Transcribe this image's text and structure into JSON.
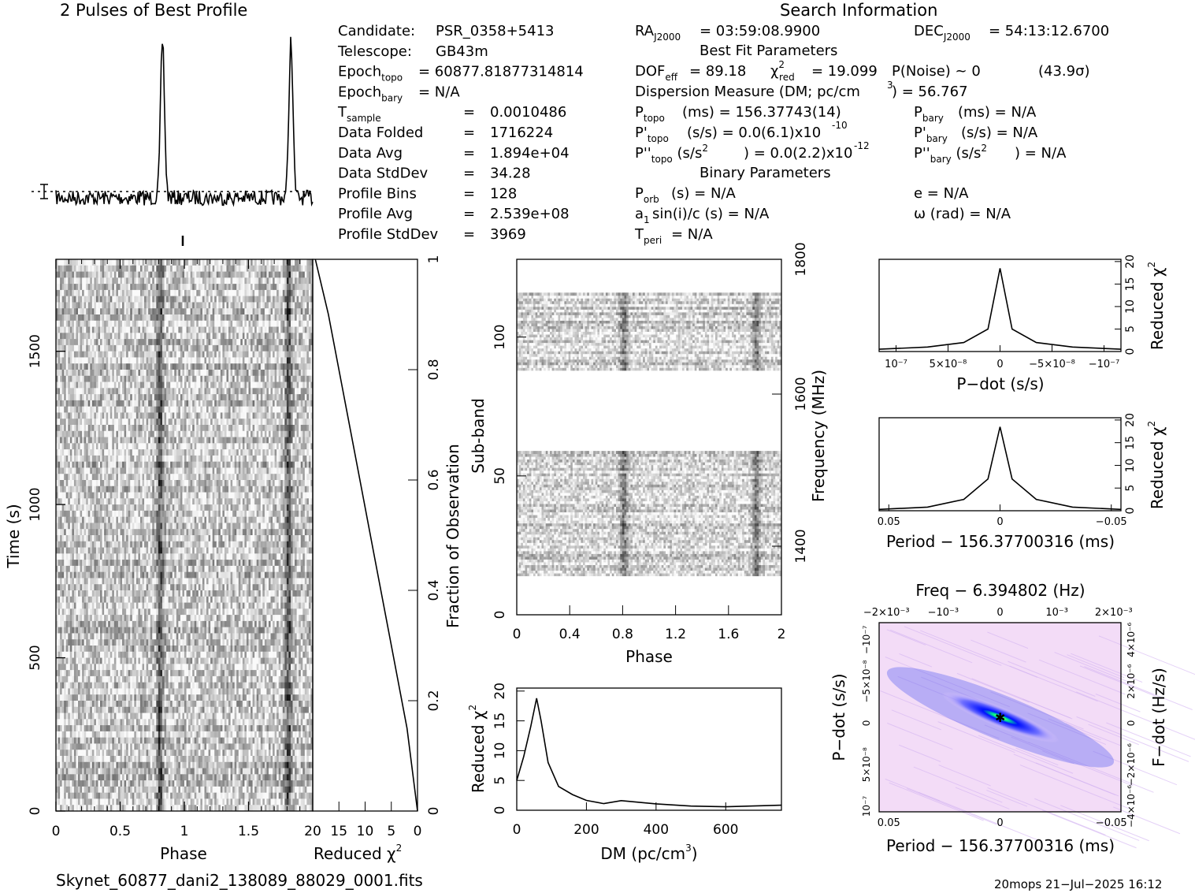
{
  "profile": {
    "title": "2 Pulses of Best Profile"
  },
  "search_info": {
    "title": "Search Information",
    "col1": [
      {
        "label": "Candidate:",
        "value": "PSR_0358+5413"
      },
      {
        "label": "Telescope:",
        "value": "GB43m"
      },
      {
        "label": "Epoch",
        "sub": "topo",
        "value": "= 60877.81877314814"
      },
      {
        "label": "Epoch",
        "sub": "bary",
        "value": "= N/A"
      },
      {
        "label": "T",
        "sub": "sample",
        "value": "0.0010486"
      },
      {
        "label": "Data Folded",
        "value": "1716224"
      },
      {
        "label": "Data Avg",
        "value": "1.894e+04"
      },
      {
        "label": "Data StdDev",
        "value": "34.28"
      },
      {
        "label": "Profile Bins",
        "value": "128"
      },
      {
        "label": "Profile Avg",
        "value": "2.539e+08"
      },
      {
        "label": "Profile StdDev",
        "value": "3969"
      }
    ],
    "ra": "= 03:59:08.9900",
    "dec": "= 54:13:12.6700",
    "best_fit_title": "Best Fit Parameters",
    "dof": "= 89.18",
    "chi2": "= 19.099",
    "pnoise": "P(Noise) ~ 0",
    "sigma": "(43.9σ)",
    "dm_text": "Dispersion Measure (DM; pc/cm",
    "dm_value": ") = 56.767",
    "ptopo": "(ms) =  156.37743(14)",
    "pbary": "(ms) = N/A",
    "pdtopo": "(s/s) = 0.0(6.1)x10",
    "pdtopo_exp": "-10",
    "pdbary": "(s/s) = N/A",
    "pddtopo": ") = 0.0(2.2)x10",
    "pddtopo_exp": "-12",
    "pddbary": ") = N/A",
    "binary_title": "Binary Parameters",
    "porb": "(s) = N/A",
    "e": "e = N/A",
    "asini": "sin(i)/c (s) = N/A",
    "omega": "ω (rad) = N/A",
    "tperi": "= N/A"
  },
  "chart_data": [
    {
      "type": "line",
      "name": "pulse-profile",
      "x": [
        0,
        0.75,
        0.79,
        0.81,
        0.83,
        0.85,
        0.87,
        0.91,
        1.75,
        1.79,
        1.81,
        1.83,
        1.85,
        1.87,
        1.91,
        2.0
      ],
      "y": [
        0.03,
        0.05,
        0.15,
        0.5,
        1.0,
        0.6,
        0.15,
        0.03,
        0.05,
        0.15,
        0.5,
        1.0,
        0.6,
        0.15,
        0.03,
        0.03
      ]
    },
    {
      "type": "heatmap",
      "name": "time-phase",
      "xlabel": "Phase",
      "ylabel": "Time (s)",
      "xlim": [
        0,
        2
      ],
      "ylim": [
        0,
        1800
      ],
      "xticks": [
        "0",
        "0.5",
        "1",
        "1.5"
      ],
      "yticks": [
        "0",
        "500",
        "1000",
        "1500"
      ],
      "dark_phase": [
        0.81,
        1.81
      ]
    },
    {
      "type": "line",
      "name": "reduced-chi2-vs-time",
      "xlabel": "Reduced χ2",
      "xlim": [
        20,
        0
      ],
      "xticks": [
        "20",
        "15",
        "10",
        "5",
        "0"
      ],
      "y2label": "Fraction of Observation",
      "y2ticks": [
        "0",
        "0.2",
        "0.4",
        "0.6",
        "0.8",
        "1"
      ],
      "x": [
        19.5,
        17,
        14,
        11,
        8,
        5,
        2,
        0
      ],
      "y": [
        1,
        0.9,
        0.75,
        0.6,
        0.45,
        0.3,
        0.15,
        0
      ]
    },
    {
      "type": "heatmap",
      "name": "subband-phase",
      "xlabel": "Phase",
      "ylabel": "Sub-band",
      "y2label": "Frequency (MHz)",
      "xticks": [
        "0",
        "0.4",
        "0.8",
        "1.2",
        "1.6",
        "2"
      ],
      "yticks": [
        "0",
        "50",
        "100"
      ],
      "y2ticks": [
        "1400",
        "1600",
        "1800"
      ],
      "band_ranges": [
        [
          14,
          59
        ],
        [
          88,
          116
        ]
      ],
      "ylim": [
        0,
        128
      ],
      "dark_phase": [
        0.81,
        1.81
      ]
    },
    {
      "type": "line",
      "name": "reduced-chi2-vs-dm",
      "xlabel": "DM (pc/cm3)",
      "ylabel": "Reduced χ2",
      "xlim": [
        0,
        760
      ],
      "ylim": [
        0,
        20
      ],
      "xticks": [
        "0",
        "200",
        "400",
        "600"
      ],
      "yticks": [
        "0",
        "5",
        "10",
        "15",
        "20"
      ],
      "x": [
        0,
        20,
        40,
        57,
        70,
        90,
        120,
        160,
        200,
        250,
        300,
        400,
        500,
        600,
        760
      ],
      "y": [
        5,
        9,
        14,
        18.8,
        15,
        8,
        4,
        2.5,
        1.6,
        1.2,
        1.5,
        1.0,
        0.8,
        0.7,
        0.7
      ]
    },
    {
      "type": "line",
      "name": "reduced-chi2-vs-pdot",
      "xlabel": "P-dot (s/s)",
      "ylabel": "Reduced χ2",
      "xticks": [
        "10⁻⁷",
        "5×10⁻⁸",
        "0",
        "−5×10⁻⁸",
        "−10⁻⁷"
      ],
      "yticks": [
        "0",
        "5",
        "10",
        "15",
        "20"
      ],
      "x": [
        -1,
        -0.6,
        -0.3,
        -0.1,
        0,
        0.1,
        0.3,
        0.6,
        1
      ],
      "y": [
        0.5,
        1,
        2,
        5,
        18.5,
        5,
        2,
        1,
        0.5
      ]
    },
    {
      "type": "line",
      "name": "reduced-chi2-vs-period",
      "xlabel": "Period − 156.37700316 (ms)",
      "ylabel": "Reduced χ2",
      "xticks": [
        "0.05",
        "0",
        "−0.05"
      ],
      "yticks": [
        "0",
        "5",
        "10",
        "15",
        "20"
      ],
      "x": [
        -1,
        -0.6,
        -0.3,
        -0.1,
        0,
        0.1,
        0.3,
        0.6,
        1
      ],
      "y": [
        0.3,
        0.8,
        2.5,
        7,
        18.5,
        7,
        2.5,
        0.8,
        0.3
      ]
    },
    {
      "type": "heatmap",
      "name": "period-pdot",
      "top_label": "Freq − 6.394802 (Hz)",
      "xlabel": "Period − 156.37700316 (ms)",
      "ylabel": "P-dot (s/s)",
      "y2label": "F-dot (Hz/s)",
      "xticks": [
        "0.05",
        "0",
        "−0.05"
      ],
      "top_ticks": [
        "−2×10⁻³",
        "−10⁻³",
        "0",
        "10⁻³",
        "2×10⁻³"
      ],
      "yticks": [
        "10⁻⁷",
        "5×10⁻⁸",
        "0",
        "−5×10⁻⁸",
        "−10⁻⁷"
      ],
      "y2ticks": [
        "−4×10⁻⁶",
        "−2×10⁻⁶",
        "0",
        "2×10⁻⁶",
        "4×10⁻⁶"
      ]
    }
  ],
  "footer": {
    "filename": "Skynet_60877_dani2_138089_88029_0001.fits",
    "stamp": "20mops 21−Jul−2025 16:12"
  }
}
